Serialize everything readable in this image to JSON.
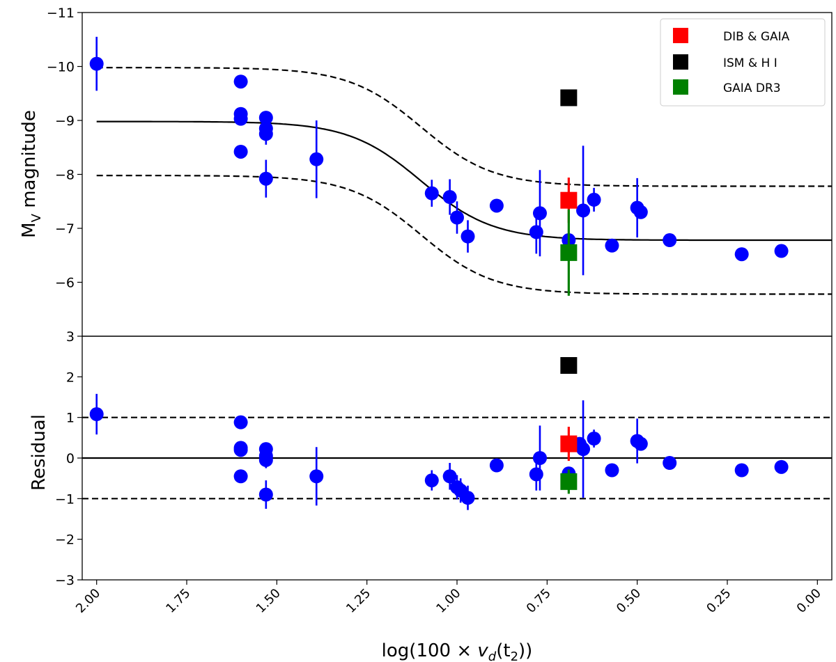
{
  "chart_data": [
    {
      "type": "scatter",
      "panel": "top",
      "ylabel_main": "M",
      "ylabel_sub": "V",
      "ylabel_rest": " magnitude",
      "xlim": [
        2.04,
        -0.04
      ],
      "ylim": [
        -5,
        -11
      ],
      "yticks": [
        -11,
        -10,
        -9,
        -8,
        -7,
        -6
      ],
      "ytick_labels": [
        "−11",
        "−10",
        "−9",
        "−8",
        "−7",
        "−6"
      ],
      "curve_params": {
        "top": -8.98,
        "bottom": -6.78,
        "center": 1.1,
        "width": 0.1
      },
      "dashed_offset": 1.0,
      "points": [
        {
          "x": 2.0,
          "y": -10.05,
          "err": 0.5
        },
        {
          "x": 1.6,
          "y": -9.72,
          "err": 0
        },
        {
          "x": 1.6,
          "y": -9.12,
          "err": 0
        },
        {
          "x": 1.6,
          "y": -9.03,
          "err": 0
        },
        {
          "x": 1.6,
          "y": -8.42,
          "err": 0
        },
        {
          "x": 1.53,
          "y": -9.05,
          "err": 0
        },
        {
          "x": 1.53,
          "y": -8.85,
          "err": 0.15
        },
        {
          "x": 1.53,
          "y": -8.75,
          "err": 0.2
        },
        {
          "x": 1.53,
          "y": -7.92,
          "err": 0.35
        },
        {
          "x": 1.39,
          "y": -8.28,
          "err": 0.72
        },
        {
          "x": 1.07,
          "y": -7.65,
          "err": 0.25
        },
        {
          "x": 1.02,
          "y": -7.58,
          "err": 0.33
        },
        {
          "x": 1.0,
          "y": -7.2,
          "err": 0.3
        },
        {
          "x": 0.97,
          "y": -6.85,
          "err": 0.3
        },
        {
          "x": 0.89,
          "y": -7.42,
          "err": 0
        },
        {
          "x": 0.78,
          "y": -6.93,
          "err": 0.4
        },
        {
          "x": 0.77,
          "y": -7.28,
          "err": 0.8
        },
        {
          "x": 0.69,
          "y": -6.78,
          "err": 0
        },
        {
          "x": 0.65,
          "y": -7.33,
          "err": 1.2
        },
        {
          "x": 0.62,
          "y": -7.53,
          "err": 0.22
        },
        {
          "x": 0.57,
          "y": -6.68,
          "err": 0
        },
        {
          "x": 0.5,
          "y": -7.38,
          "err": 0.55
        },
        {
          "x": 0.49,
          "y": -7.3,
          "err": 0
        },
        {
          "x": 0.41,
          "y": -6.78,
          "err": 0
        },
        {
          "x": 0.21,
          "y": -6.52,
          "err": 0
        },
        {
          "x": 0.1,
          "y": -6.58,
          "err": 0
        }
      ],
      "special_points": [
        {
          "label": "DIB & GAIA",
          "color": "#ff0000",
          "x": 0.69,
          "y": -7.52,
          "err": 0.42
        },
        {
          "label": "ISM & H I",
          "color": "#000000",
          "x": 0.69,
          "y": -9.42,
          "err": 0
        },
        {
          "label": "GAIA DR3",
          "color": "#008000",
          "x": 0.69,
          "y": -6.55,
          "err": 0.8
        }
      ],
      "legend": [
        "DIB & GAIA",
        "ISM & H I",
        "GAIA DR3"
      ],
      "legend_position": "top-right"
    },
    {
      "type": "scatter",
      "panel": "bottom",
      "ylabel": "Residual",
      "xlabel_pre": "log(100 × ",
      "xlabel_v": "v",
      "xlabel_d": "d",
      "xlabel_t": "(t",
      "xlabel_2": "2",
      "xlabel_post": "))",
      "xlim": [
        2.04,
        -0.04
      ],
      "ylim": [
        -3,
        3
      ],
      "yticks": [
        -3,
        -2,
        -1,
        0,
        1,
        2,
        3
      ],
      "ytick_labels": [
        "−3",
        "−2",
        "−1",
        "0",
        "1",
        "2",
        "3"
      ],
      "xticks": [
        2.0,
        1.75,
        1.5,
        1.25,
        1.0,
        0.75,
        0.5,
        0.25,
        0.0
      ],
      "xtick_labels": [
        "2.00",
        "1.75",
        "1.50",
        "1.25",
        "1.00",
        "0.75",
        "0.50",
        "0.25",
        "0.00"
      ],
      "reference_lines": {
        "solid": 0,
        "dashed": [
          1,
          -1
        ]
      },
      "points": [
        {
          "x": 2.0,
          "y": 1.08,
          "err": 0.5
        },
        {
          "x": 1.6,
          "y": 0.88,
          "err": 0
        },
        {
          "x": 1.6,
          "y": 0.25,
          "err": 0
        },
        {
          "x": 1.6,
          "y": 0.2,
          "err": 0
        },
        {
          "x": 1.6,
          "y": -0.45,
          "err": 0
        },
        {
          "x": 1.53,
          "y": 0.22,
          "err": 0
        },
        {
          "x": 1.53,
          "y": 0.05,
          "err": 0.15
        },
        {
          "x": 1.53,
          "y": -0.05,
          "err": 0.2
        },
        {
          "x": 1.53,
          "y": -0.9,
          "err": 0.35
        },
        {
          "x": 1.39,
          "y": -0.45,
          "err": 0.72
        },
        {
          "x": 1.07,
          "y": -0.55,
          "err": 0.25
        },
        {
          "x": 1.02,
          "y": -0.45,
          "err": 0.33
        },
        {
          "x": 1.0,
          "y": -0.72,
          "err": 0.3
        },
        {
          "x": 0.99,
          "y": -0.8,
          "err": 0.3
        },
        {
          "x": 0.97,
          "y": -0.98,
          "err": 0.3
        },
        {
          "x": 0.89,
          "y": -0.18,
          "err": 0
        },
        {
          "x": 0.78,
          "y": -0.4,
          "err": 0.4
        },
        {
          "x": 0.77,
          "y": 0.0,
          "err": 0.8
        },
        {
          "x": 0.69,
          "y": -0.38,
          "err": 0
        },
        {
          "x": 0.66,
          "y": 0.35,
          "err": 0
        },
        {
          "x": 0.65,
          "y": 0.22,
          "err": 1.2
        },
        {
          "x": 0.62,
          "y": 0.48,
          "err": 0.22
        },
        {
          "x": 0.57,
          "y": -0.3,
          "err": 0
        },
        {
          "x": 0.5,
          "y": 0.42,
          "err": 0.55
        },
        {
          "x": 0.49,
          "y": 0.35,
          "err": 0
        },
        {
          "x": 0.41,
          "y": -0.12,
          "err": 0
        },
        {
          "x": 0.21,
          "y": -0.3,
          "err": 0
        },
        {
          "x": 0.1,
          "y": -0.22,
          "err": 0
        }
      ],
      "special_points": [
        {
          "label": "DIB & GAIA",
          "color": "#ff0000",
          "x": 0.69,
          "y": 0.35,
          "err": 0.42
        },
        {
          "label": "ISM & H I",
          "color": "#000000",
          "x": 0.69,
          "y": 2.28,
          "err": 0
        },
        {
          "label": "GAIA DR3",
          "color": "#008000",
          "x": 0.69,
          "y": -0.58,
          "err": 0.3
        }
      ]
    }
  ],
  "colors": {
    "points": "#0000ff",
    "axes": "#000000",
    "background": "#ffffff"
  }
}
